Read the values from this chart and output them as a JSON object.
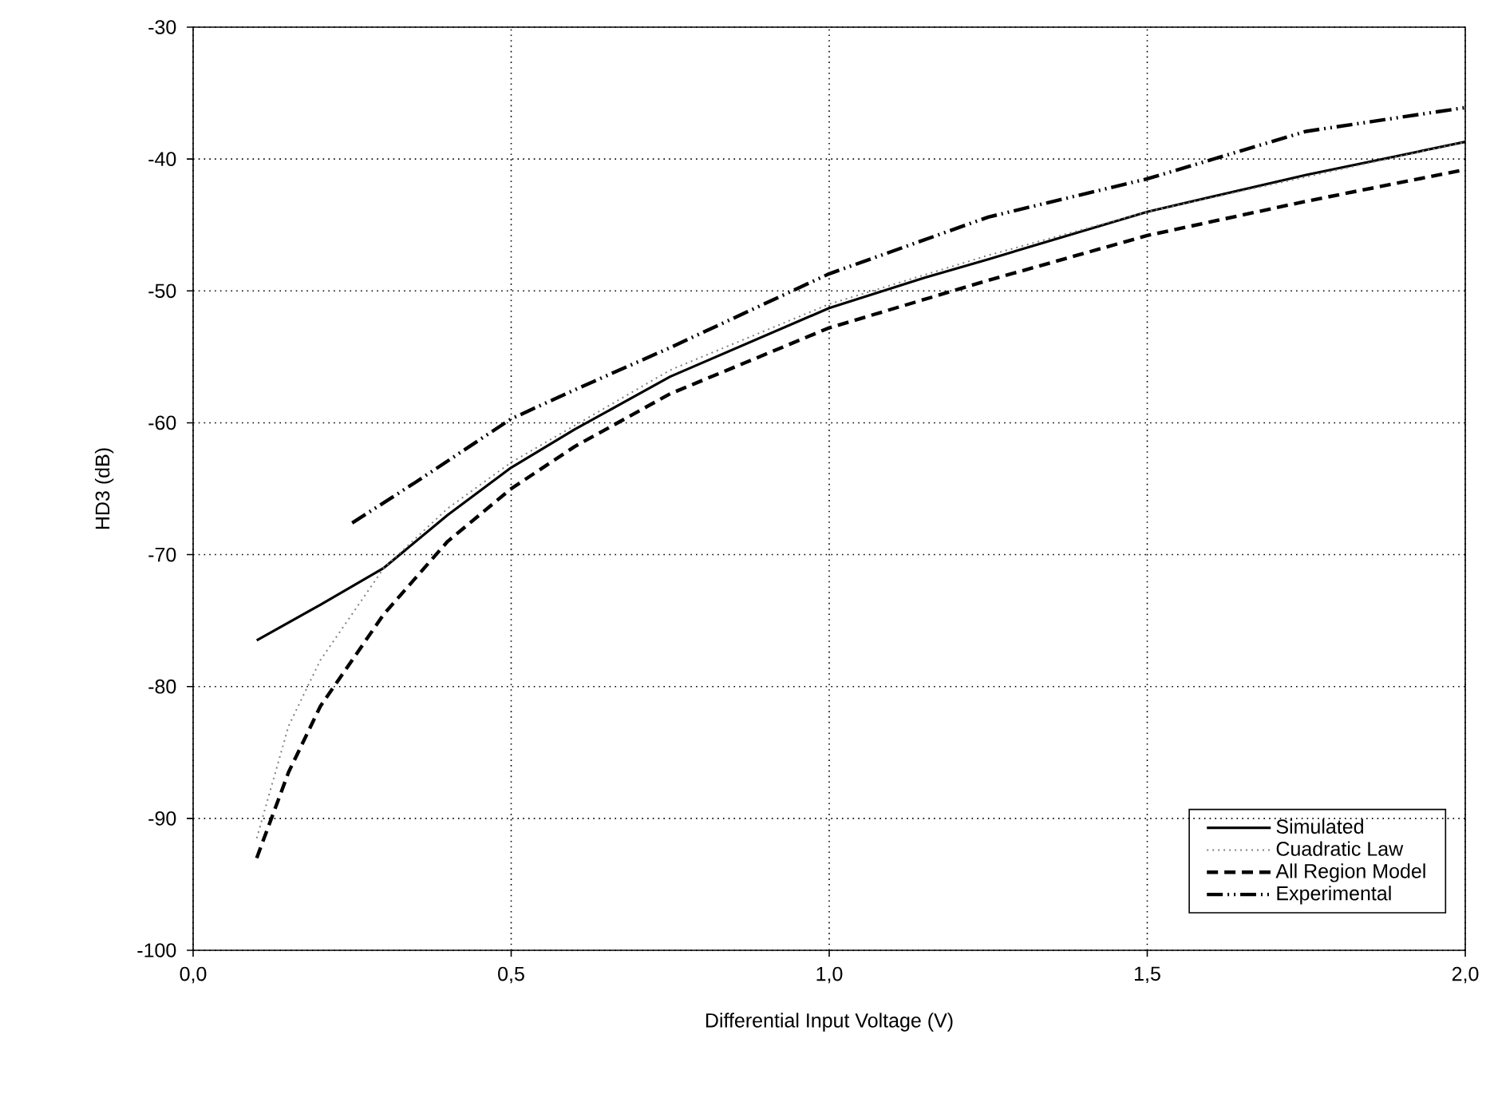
{
  "chart_data": {
    "type": "line",
    "xlabel": "Differential Input Voltage (V)",
    "ylabel": "HD3 (dB)",
    "xlim": [
      0,
      2
    ],
    "ylim": [
      -100,
      -30
    ],
    "xticks": [
      {
        "value": 0,
        "label": "0,0"
      },
      {
        "value": 0.5,
        "label": "0,5"
      },
      {
        "value": 1,
        "label": "1,0"
      },
      {
        "value": 1.5,
        "label": "1,5"
      },
      {
        "value": 2,
        "label": "2,0"
      }
    ],
    "yticks": [
      -100,
      -90,
      -80,
      -70,
      -60,
      -50,
      -40,
      -30
    ],
    "grid": true,
    "legend": "bottom right",
    "series": [
      {
        "name": "Simulated",
        "color": "#000000",
        "line_style": "solid",
        "x": [
          0.1,
          0.2,
          0.3,
          0.4,
          0.5,
          0.6,
          0.75,
          1.0,
          1.15,
          1.25,
          1.5,
          1.75,
          2.0
        ],
        "values": [
          -76.5,
          -73.8,
          -71,
          -67,
          -63.4,
          -60.5,
          -56.5,
          -51.3,
          -49,
          -47.6,
          -44,
          -41.2,
          -38.7
        ]
      },
      {
        "name": "Cuadratic Law",
        "color": "#808080",
        "line_style": "dotted",
        "x": [
          0.1,
          0.15,
          0.2,
          0.25,
          0.3,
          0.4,
          0.5,
          0.75,
          1.0,
          1.25,
          1.5,
          2.0
        ],
        "values": [
          -91.5,
          -83,
          -78,
          -74.5,
          -71,
          -66.5,
          -63,
          -56,
          -51,
          -47.3,
          -44,
          -38.7
        ]
      },
      {
        "name": "All Region Model",
        "color": "#000000",
        "line_style": "dashed",
        "x": [
          0.1,
          0.15,
          0.2,
          0.3,
          0.4,
          0.5,
          0.6,
          0.75,
          1.0,
          1.25,
          1.5,
          1.75,
          2.0
        ],
        "values": [
          -93,
          -86.5,
          -81.5,
          -74.5,
          -69,
          -65,
          -61.8,
          -57.8,
          -52.8,
          -49.2,
          -45.8,
          -43.2,
          -40.8
        ]
      },
      {
        "name": "Experimental",
        "color": "#000000",
        "line_style": "dashdot",
        "x": [
          0.25,
          0.35,
          0.5,
          0.6,
          0.75,
          1.0,
          1.25,
          1.5,
          1.75,
          2.0
        ],
        "values": [
          -67.6,
          -64.5,
          -59.7,
          -57.5,
          -54.3,
          -48.7,
          -44.4,
          -41.5,
          -37.9,
          -36.1
        ]
      }
    ]
  }
}
